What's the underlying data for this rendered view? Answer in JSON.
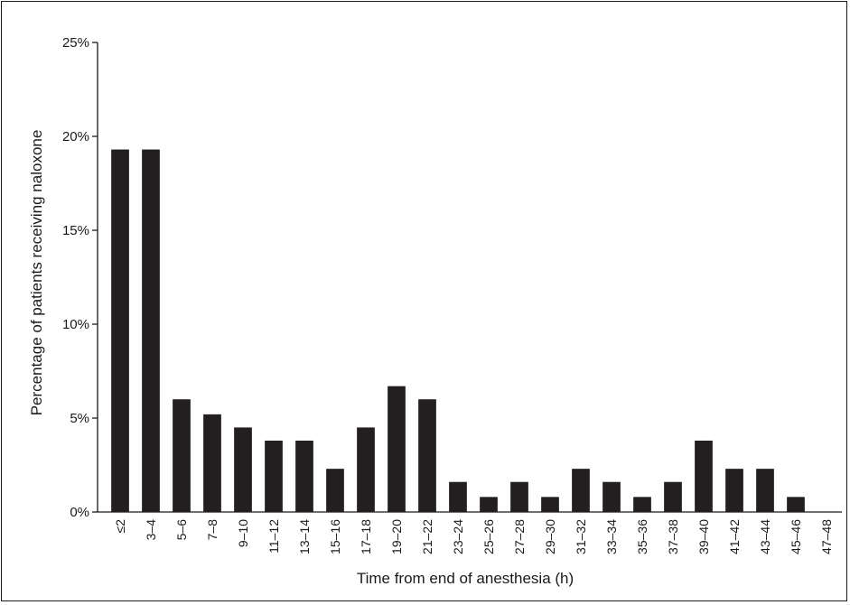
{
  "chart_data": {
    "type": "bar",
    "title": "",
    "xlabel": "Time from end of anesthesia (h)",
    "ylabel": "Percentage of patients receiving naloxone",
    "ylim": [
      0,
      25
    ],
    "yticks": [
      "0%",
      "5%",
      "10%",
      "15%",
      "20%",
      "25%"
    ],
    "ytick_values": [
      0,
      5,
      10,
      15,
      20,
      25
    ],
    "categories": [
      "≤2",
      "3–4",
      "5–6",
      "7–8",
      "9–10",
      "11–12",
      "13–14",
      "15–16",
      "17–18",
      "19–20",
      "21–22",
      "23–24",
      "25–26",
      "27–28",
      "29–30",
      "31–32",
      "33–34",
      "35–36",
      "37–38",
      "39–40",
      "41–42",
      "43–44",
      "45–46",
      "47–48"
    ],
    "values": [
      19.3,
      19.3,
      6.0,
      5.2,
      4.5,
      3.8,
      3.8,
      2.3,
      4.5,
      6.7,
      6.0,
      1.6,
      0.8,
      1.6,
      0.8,
      2.3,
      1.6,
      0.8,
      1.6,
      3.8,
      2.3,
      2.3,
      0.8,
      0
    ],
    "grid": false,
    "bar_color": "#231f20"
  }
}
